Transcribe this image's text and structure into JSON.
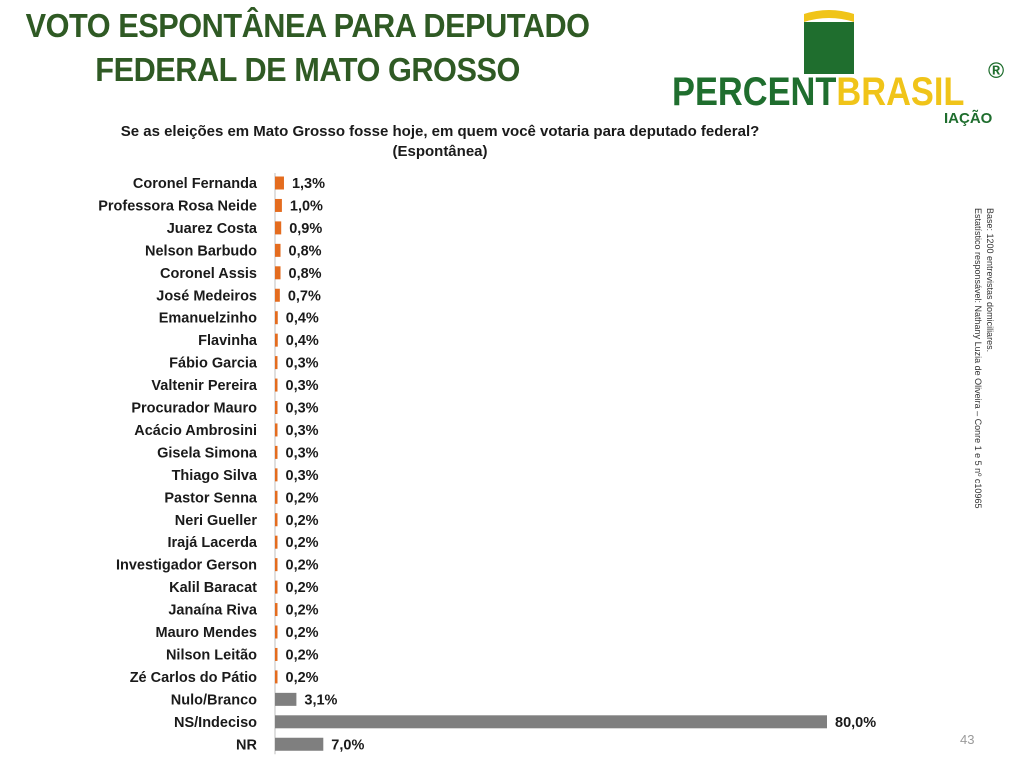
{
  "title": [
    "VOTO ESPONTÂNEA PARA DEPUTADO",
    "FEDERAL DE MATO GROSSO"
  ],
  "logo": {
    "word_a": "PERCENT",
    "word_b": "BRASIL",
    "registered": "®",
    "subtitle": "IAÇÃO"
  },
  "question": [
    "Se as eleições em Mato Grosso fosse hoje, em quem você votaria para deputado federal?",
    "(Espontânea)"
  ],
  "side_note": [
    "Base: 1200 entrevistas domiciliares.",
    "Estatístico responsável: Nathany Luzia de Oliveira – Conre 1 e 5 nº c10965"
  ],
  "page_number": "43",
  "colors": {
    "title": "#2f5a24",
    "candidate_bar": "#e46c1f",
    "other_bar": "#7f7f7f",
    "text": "#1a1a1a"
  },
  "chart_data": {
    "type": "bar",
    "orientation": "horizontal",
    "title": "Se as eleições em Mato Grosso fosse hoje, em quem você votaria para deputado federal? (Espontânea)",
    "categories": [
      "Coronel Fernanda",
      "Professora Rosa Neide",
      "Juarez Costa",
      "Nelson Barbudo",
      "Coronel Assis",
      "José Medeiros",
      "Emanuelzinho",
      "Flavinha",
      "Fábio Garcia",
      "Valtenir Pereira",
      "Procurador Mauro",
      "Acácio Ambrosini",
      "Gisela Simona",
      "Thiago Silva",
      "Pastor Senna",
      "Neri Gueller",
      "Irajá Lacerda",
      "Investigador Gerson",
      "Kalil Baracat",
      "Janaína Riva",
      "Mauro Mendes",
      "Nilson Leitão",
      "Zé Carlos do Pátio",
      "Nulo/Branco",
      "NS/Indeciso",
      "NR"
    ],
    "values": [
      1.3,
      1.0,
      0.9,
      0.8,
      0.8,
      0.7,
      0.4,
      0.4,
      0.3,
      0.3,
      0.3,
      0.3,
      0.3,
      0.3,
      0.2,
      0.2,
      0.2,
      0.2,
      0.2,
      0.2,
      0.2,
      0.2,
      0.2,
      3.1,
      80.0,
      7.0
    ],
    "value_labels": [
      "1,3%",
      "1,0%",
      "0,9%",
      "0,8%",
      "0,8%",
      "0,7%",
      "0,4%",
      "0,4%",
      "0,3%",
      "0,3%",
      "0,3%",
      "0,3%",
      "0,3%",
      "0,3%",
      "0,2%",
      "0,2%",
      "0,2%",
      "0,2%",
      "0,2%",
      "0,2%",
      "0,2%",
      "0,2%",
      "0,2%",
      "3,1%",
      "80,0%",
      "7,0%"
    ],
    "bar_group": [
      "candidate",
      "candidate",
      "candidate",
      "candidate",
      "candidate",
      "candidate",
      "candidate",
      "candidate",
      "candidate",
      "candidate",
      "candidate",
      "candidate",
      "candidate",
      "candidate",
      "candidate",
      "candidate",
      "candidate",
      "candidate",
      "candidate",
      "candidate",
      "candidate",
      "candidate",
      "candidate",
      "other",
      "other",
      "other"
    ],
    "xlim": [
      0,
      80
    ],
    "unit": "%",
    "grid": false,
    "legend": "none"
  }
}
